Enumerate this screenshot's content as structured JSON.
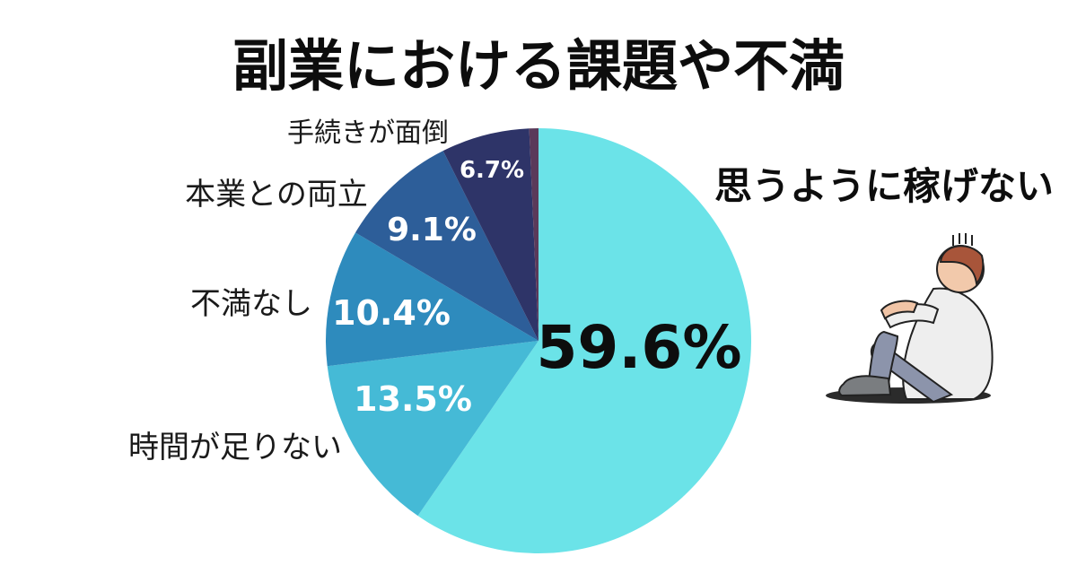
{
  "title": "副業における課題や不満",
  "callout": "思うように稼げない",
  "colors": {
    "background": "#ffffff",
    "title": "#0d0d0d",
    "labels": "#1a1a1a"
  },
  "illustration": "sitting-person-worried-icon",
  "chart_data": {
    "type": "pie",
    "start_angle_deg": 0,
    "direction": "clockwise",
    "slices": [
      {
        "label": "思うように稼げない",
        "value": 59.6,
        "pct_text": "59.6%",
        "color": "#6be3e8"
      },
      {
        "label": "時間が足りない",
        "value": 13.5,
        "pct_text": "13.5%",
        "color": "#45bad6"
      },
      {
        "label": "不満なし",
        "value": 10.4,
        "pct_text": "10.4%",
        "color": "#2e8bbd"
      },
      {
        "label": "本業との両立",
        "value": 9.1,
        "pct_text": "9.1%",
        "color": "#2d5e99"
      },
      {
        "label": "手続きが面倒",
        "value": 6.7,
        "pct_text": "6.7%",
        "color": "#2e3468"
      },
      {
        "label": "",
        "value": 0.7,
        "pct_text": "",
        "color": "#5a3a5a"
      }
    ]
  }
}
